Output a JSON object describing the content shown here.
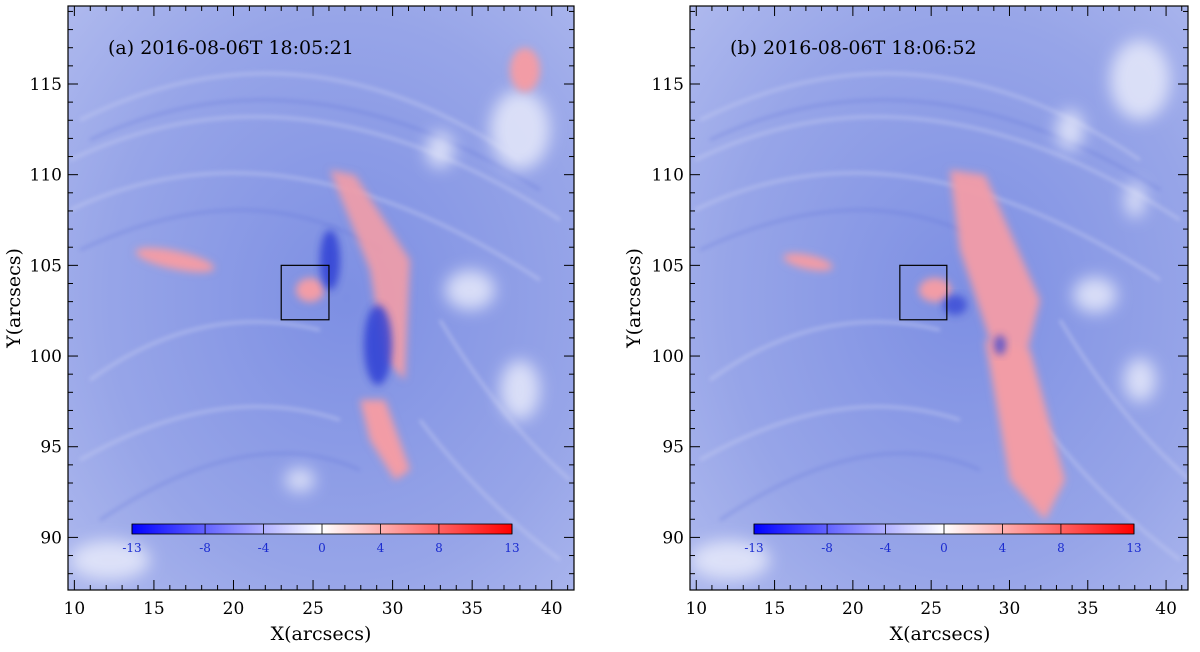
{
  "panels": [
    {
      "id": "a",
      "title": "(a) 2016-08-06T 18:05:21",
      "xlabel": "X(arcsecs)",
      "ylabel": "Y(arcsecs)",
      "x_ticks": [
        "10",
        "15",
        "20",
        "25",
        "30",
        "35",
        "40"
      ],
      "y_ticks": [
        "90",
        "95",
        "100",
        "105",
        "110",
        "115"
      ],
      "colorbar_ticks": [
        "-13",
        "-8",
        "-4",
        "0",
        "4",
        "8",
        "13"
      ]
    },
    {
      "id": "b",
      "title": "(b) 2016-08-06T 18:06:52",
      "xlabel": "X(arcsecs)",
      "ylabel": "Y(arcsecs)",
      "x_ticks": [
        "10",
        "15",
        "20",
        "25",
        "30",
        "35",
        "40"
      ],
      "y_ticks": [
        "90",
        "95",
        "100",
        "105",
        "110",
        "115"
      ],
      "colorbar_ticks": [
        "-13",
        "-8",
        "-4",
        "0",
        "4",
        "8",
        "13"
      ]
    }
  ],
  "axes": {
    "xlim": [
      9.6,
      41.4
    ],
    "ylim": [
      87.1,
      119.3
    ]
  },
  "colorbar": {
    "range": [
      -13,
      13
    ],
    "colors": {
      "negative": "#0000ff",
      "zero": "#ffffff",
      "positive": "#ff0000"
    }
  },
  "roi_box": {
    "x": [
      23,
      26
    ],
    "y": [
      102,
      105
    ]
  },
  "colors": {
    "background_field": "#8a9ae6",
    "light_field": "#c9d0f2",
    "redshift": "#f0a0a8",
    "blueshift": "#3a48d8"
  }
}
